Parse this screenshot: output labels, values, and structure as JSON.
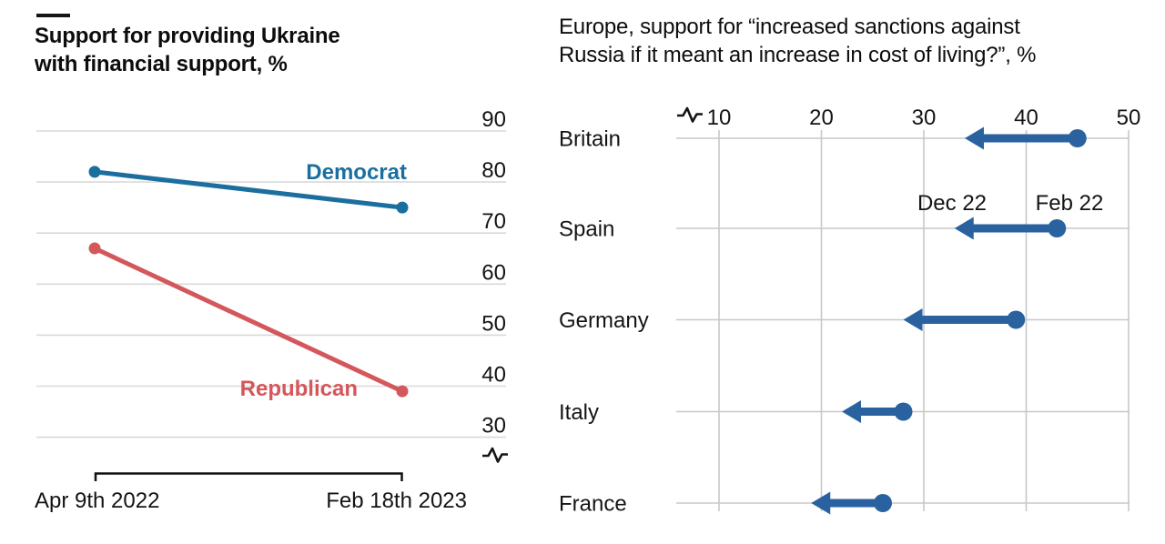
{
  "chart_data": [
    {
      "id": "us-support",
      "type": "line",
      "title_lines": [
        "Support for providing Ukraine",
        "with financial support, %"
      ],
      "x_categories": [
        "Apr 9th 2022",
        "Feb 18th 2023"
      ],
      "ylim": [
        30,
        90
      ],
      "yticks": [
        90,
        80,
        70,
        60,
        50,
        40,
        30
      ],
      "grid": "horizontal",
      "axis_break": true,
      "legend_position": "inline-labels",
      "series": [
        {
          "name": "Democrat",
          "color": "#1b6f9f",
          "values": [
            82,
            75
          ]
        },
        {
          "name": "Republican",
          "color": "#d4575c",
          "values": [
            67,
            39
          ]
        }
      ],
      "gridline_color": "#d9d9d9",
      "text_color": "#141414"
    },
    {
      "id": "europe-sanctions",
      "type": "dumbbell-arrow",
      "title_lines": [
        "Europe, support for “increased sanctions against",
        "Russia if it meant an increase in cost of living?”, %"
      ],
      "xlim": [
        10,
        50
      ],
      "xticks": [
        10,
        20,
        30,
        40,
        50
      ],
      "grid": "vertical-and-rows",
      "axis_break": true,
      "categories": [
        "Britain",
        "Spain",
        "Germany",
        "Italy",
        "France"
      ],
      "series": [
        {
          "name": "Feb 22",
          "values": [
            45,
            43,
            39,
            28,
            26
          ]
        },
        {
          "name": "Dec 22",
          "values": [
            34,
            33,
            28,
            22,
            19
          ]
        }
      ],
      "point_labels": {
        "to": "Dec 22",
        "from": "Feb 22"
      },
      "arrow_color": "#2a62a0",
      "gridline_color": "#c8c8c8",
      "text_color": "#141414"
    }
  ]
}
